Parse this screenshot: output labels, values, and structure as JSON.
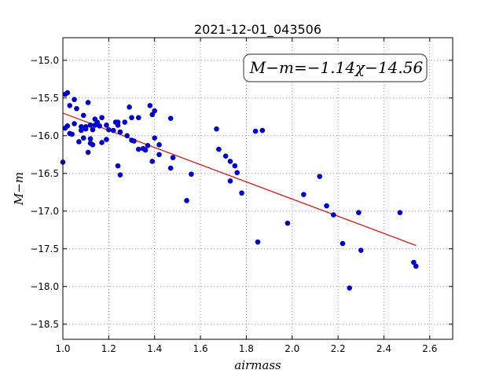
{
  "chart_data": {
    "type": "scatter",
    "title": "2021-12-01_043506",
    "xlabel": "airmass",
    "ylabel": "M−m",
    "annotation": "M−m=−1.14χ−14.56",
    "xlim": [
      1.0,
      2.7
    ],
    "ylim": [
      -18.7,
      -14.7
    ],
    "x_ticks": [
      "1.0",
      "1.2",
      "1.4",
      "1.6",
      "1.8",
      "2.0",
      "2.2",
      "2.4",
      "2.6"
    ],
    "y_ticks": [
      "−15.0",
      "−15.5",
      "−16.0",
      "−16.5",
      "−17.0",
      "−17.5",
      "−18.0",
      "−18.5"
    ],
    "grid": true,
    "point_color": "#0000cc",
    "fit_color": "#dd0000",
    "fit": {
      "slope": -1.14,
      "intercept": -14.56,
      "x_range": [
        1.0,
        2.54
      ]
    },
    "points": [
      [
        1.0,
        -16.35
      ],
      [
        1.01,
        -15.45
      ],
      [
        1.01,
        -15.9
      ],
      [
        1.02,
        -15.43
      ],
      [
        1.02,
        -15.87
      ],
      [
        1.03,
        -15.6
      ],
      [
        1.03,
        -15.97
      ],
      [
        1.04,
        -15.98
      ],
      [
        1.05,
        -15.52
      ],
      [
        1.05,
        -15.84
      ],
      [
        1.06,
        -15.64
      ],
      [
        1.07,
        -16.08
      ],
      [
        1.08,
        -15.88
      ],
      [
        1.08,
        -15.93
      ],
      [
        1.09,
        -15.73
      ],
      [
        1.09,
        -16.03
      ],
      [
        1.1,
        -15.91
      ],
      [
        1.1,
        -15.88
      ],
      [
        1.11,
        -15.56
      ],
      [
        1.11,
        -16.22
      ],
      [
        1.12,
        -15.86
      ],
      [
        1.12,
        -16.04
      ],
      [
        1.12,
        -16.1
      ],
      [
        1.13,
        -15.92
      ],
      [
        1.13,
        -16.12
      ],
      [
        1.14,
        -15.86
      ],
      [
        1.14,
        -15.78
      ],
      [
        1.15,
        -15.82
      ],
      [
        1.16,
        -15.87
      ],
      [
        1.17,
        -15.76
      ],
      [
        1.17,
        -16.09
      ],
      [
        1.19,
        -16.05
      ],
      [
        1.19,
        -15.86
      ],
      [
        1.2,
        -15.92
      ],
      [
        1.22,
        -15.93
      ],
      [
        1.23,
        -15.82
      ],
      [
        1.24,
        -15.82
      ],
      [
        1.24,
        -16.4
      ],
      [
        1.24,
        -15.86
      ],
      [
        1.25,
        -16.52
      ],
      [
        1.25,
        -15.95
      ],
      [
        1.27,
        -15.82
      ],
      [
        1.28,
        -16.0
      ],
      [
        1.29,
        -15.62
      ],
      [
        1.3,
        -16.06
      ],
      [
        1.3,
        -15.76
      ],
      [
        1.31,
        -16.07
      ],
      [
        1.33,
        -16.18
      ],
      [
        1.33,
        -15.76
      ],
      [
        1.35,
        -16.17
      ],
      [
        1.36,
        -16.19
      ],
      [
        1.37,
        -16.13
      ],
      [
        1.38,
        -15.6
      ],
      [
        1.39,
        -15.72
      ],
      [
        1.39,
        -16.34
      ],
      [
        1.4,
        -16.03
      ],
      [
        1.4,
        -15.67
      ],
      [
        1.42,
        -16.25
      ],
      [
        1.42,
        -16.12
      ],
      [
        1.47,
        -16.43
      ],
      [
        1.47,
        -15.77
      ],
      [
        1.48,
        -16.29
      ],
      [
        1.54,
        -16.86
      ],
      [
        1.56,
        -16.51
      ],
      [
        1.67,
        -15.91
      ],
      [
        1.68,
        -16.18
      ],
      [
        1.71,
        -16.27
      ],
      [
        1.73,
        -16.6
      ],
      [
        1.73,
        -16.34
      ],
      [
        1.75,
        -16.4
      ],
      [
        1.76,
        -16.49
      ],
      [
        1.78,
        -16.76
      ],
      [
        1.84,
        -15.94
      ],
      [
        1.85,
        -17.41
      ],
      [
        1.87,
        -15.93
      ],
      [
        1.98,
        -17.16
      ],
      [
        2.05,
        -16.78
      ],
      [
        2.12,
        -16.54
      ],
      [
        2.15,
        -16.93
      ],
      [
        2.18,
        -17.05
      ],
      [
        2.22,
        -17.43
      ],
      [
        2.25,
        -18.02
      ],
      [
        2.29,
        -17.02
      ],
      [
        2.3,
        -17.52
      ],
      [
        2.47,
        -17.02
      ],
      [
        2.53,
        -17.68
      ],
      [
        2.54,
        -17.73
      ]
    ]
  }
}
